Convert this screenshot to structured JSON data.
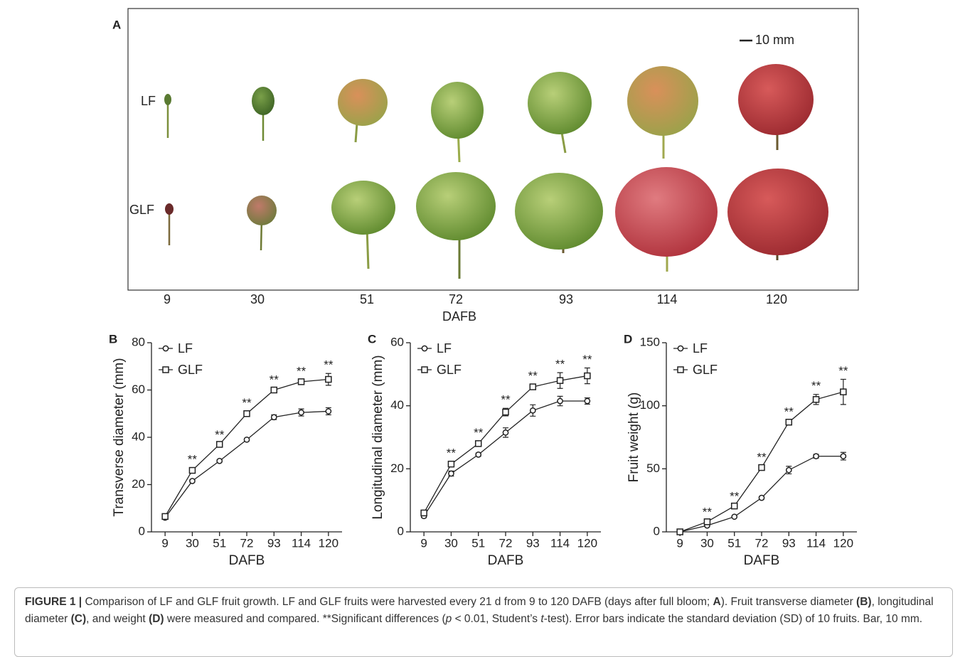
{
  "panel_a": {
    "label": "A",
    "rows": [
      "LF",
      "GLF"
    ],
    "scale_bar": "10 mm",
    "days": [
      "9",
      "30",
      "51",
      "72",
      "93",
      "114",
      "120"
    ],
    "x_label": "DAFB"
  },
  "chart_data": [
    {
      "type": "line",
      "panel_label": "B",
      "y_label": "Transverse diameter (mm)",
      "x_label": "DAFB",
      "categories": [
        "9",
        "30",
        "51",
        "72",
        "93",
        "114",
        "120"
      ],
      "series": [
        {
          "name": "LF",
          "marker": "circle",
          "color": "#222222",
          "values": [
            6,
            21.5,
            30,
            39,
            48.5,
            50.5,
            51
          ],
          "errors": [
            0.5,
            0.5,
            0.5,
            0.5,
            1,
            1.5,
            1.5
          ]
        },
        {
          "name": "GLF",
          "marker": "square",
          "color": "#222222",
          "values": [
            6.5,
            26,
            37,
            50,
            60,
            63.5,
            64.5
          ],
          "errors": [
            0.5,
            1,
            0.5,
            1,
            0.8,
            0.8,
            2.5
          ]
        }
      ],
      "significance": [
        null,
        "**",
        "**",
        "**",
        "**",
        "**",
        "**"
      ],
      "ylim": [
        0,
        80
      ],
      "yticks": [
        0,
        20,
        40,
        60,
        80
      ]
    },
    {
      "type": "line",
      "panel_label": "C",
      "y_label": "Longitudinal diameter (mm)",
      "x_label": "DAFB",
      "categories": [
        "9",
        "30",
        "51",
        "72",
        "93",
        "114",
        "120"
      ],
      "series": [
        {
          "name": "LF",
          "marker": "circle",
          "color": "#222222",
          "values": [
            5,
            18.5,
            24.5,
            31.5,
            38.5,
            41.5,
            41.5
          ],
          "errors": [
            0.5,
            0.8,
            0.5,
            1.5,
            1.8,
            1.5,
            1
          ]
        },
        {
          "name": "GLF",
          "marker": "square",
          "color": "#222222",
          "values": [
            6,
            21.5,
            28,
            38,
            46,
            48,
            49.5
          ],
          "errors": [
            0.5,
            0.8,
            0.8,
            1.2,
            0.8,
            2.5,
            2.5
          ]
        }
      ],
      "significance": [
        null,
        "**",
        "**",
        "**",
        "**",
        "**",
        "**"
      ],
      "ylim": [
        0,
        60
      ],
      "yticks": [
        0,
        20,
        40,
        60
      ]
    },
    {
      "type": "line",
      "panel_label": "D",
      "y_label": "Fruit weight (g)",
      "x_label": "DAFB",
      "categories": [
        "9",
        "30",
        "51",
        "72",
        "93",
        "114",
        "120"
      ],
      "series": [
        {
          "name": "LF",
          "marker": "circle",
          "color": "#222222",
          "values": [
            0,
            5,
            12,
            27,
            49,
            60,
            60
          ],
          "errors": [
            0.3,
            0.5,
            0.5,
            1,
            3,
            1.5,
            3
          ]
        },
        {
          "name": "GLF",
          "marker": "square",
          "color": "#222222",
          "values": [
            0,
            8,
            20.5,
            51,
            87,
            105,
            111
          ],
          "errors": [
            0.3,
            1,
            1,
            1.5,
            1.5,
            4,
            10
          ]
        }
      ],
      "significance": [
        null,
        "**",
        "**",
        "**",
        "**",
        "**",
        "**"
      ],
      "ylim": [
        0,
        150
      ],
      "yticks": [
        0,
        50,
        100,
        150
      ]
    }
  ],
  "caption": [
    "FIGURE 1 |",
    " Comparison of LF and GLF fruit growth. LF and GLF fruits were harvested every 21 d from 9 to 120 DAFB (days after full bloom; ",
    "A",
    "). Fruit transverse diameter ",
    "(B)",
    ", longitudinal diameter ",
    "(C)",
    ", and weight ",
    "(D)",
    " were measured and compared. **Significant differences (",
    "p",
    " < 0.01, Student’s ",
    "t",
    "-test). Error bars indicate the standard deviation (SD) of 10 fruits. Bar, 10 mm."
  ]
}
